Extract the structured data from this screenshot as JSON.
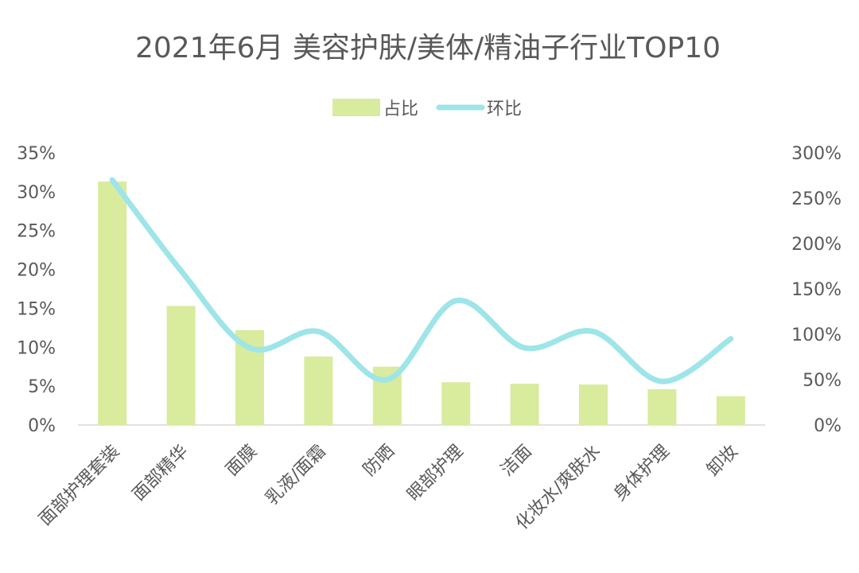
{
  "chart_data": {
    "type": "bar",
    "title": "2021年6月 美容护肤/美体/精油子行业TOP10",
    "categories": [
      "面部护理套装",
      "面部精华",
      "面膜",
      "乳液/面霜",
      "防晒",
      "眼部护理",
      "洁面",
      "化妆水/爽肤水",
      "身体护理",
      "卸妆"
    ],
    "series": [
      {
        "name": "占比",
        "type": "bar",
        "axis": "left",
        "color": "#d9eb9d",
        "values": [
          31.3,
          15.3,
          12.2,
          8.8,
          7.5,
          5.5,
          5.3,
          5.2,
          4.6,
          3.7
        ]
      },
      {
        "name": "环比",
        "type": "line",
        "axis": "right",
        "color": "#9de5e8",
        "values": [
          270,
          170,
          85,
          103,
          50,
          137,
          85,
          103,
          48,
          95
        ]
      }
    ],
    "y_left": {
      "min": 0,
      "max": 35,
      "step": 5,
      "ticks": [
        "0%",
        "5%",
        "10%",
        "15%",
        "20%",
        "25%",
        "30%",
        "35%"
      ]
    },
    "y_right": {
      "min": 0,
      "max": 300,
      "step": 50,
      "ticks": [
        "0%",
        "50%",
        "100%",
        "150%",
        "200%",
        "250%",
        "300%"
      ]
    },
    "legend_position": "top-center",
    "grid": false
  }
}
